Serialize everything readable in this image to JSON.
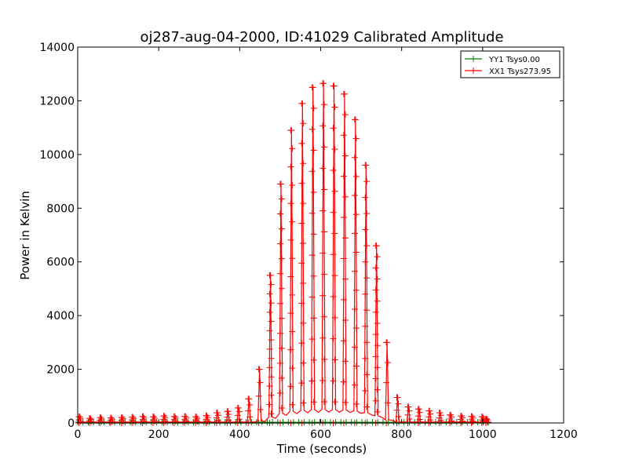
{
  "chart_data": {
    "type": "line",
    "title": "oj287-aug-04-2000, ID:41029 Calibrated Amplitude",
    "xlabel": "Time (seconds)",
    "ylabel": "Power in Kelvin",
    "xlim": [
      0,
      1200
    ],
    "ylim": [
      0,
      14000
    ],
    "xticks": [
      0,
      200,
      400,
      600,
      800,
      1000,
      1200
    ],
    "yticks": [
      0,
      2000,
      4000,
      6000,
      8000,
      10000,
      12000,
      14000
    ],
    "grid": false,
    "legend_position": "top-right",
    "series": [
      {
        "name": "YY1 Tsys0.00",
        "color": "#008000",
        "marker": "plus",
        "scans": [
          {
            "t": 0,
            "peak": 0
          },
          {
            "t": 1015,
            "peak": 0
          }
        ]
      },
      {
        "name": "XX1 Tsys273.95",
        "color": "#ff0000",
        "marker": "plus",
        "scans": [
          {
            "t": 5,
            "peak": 230
          },
          {
            "t": 31,
            "peak": 170
          },
          {
            "t": 57,
            "peak": 200
          },
          {
            "t": 83,
            "peak": 190
          },
          {
            "t": 110,
            "peak": 210
          },
          {
            "t": 136,
            "peak": 220
          },
          {
            "t": 162,
            "peak": 240
          },
          {
            "t": 188,
            "peak": 230
          },
          {
            "t": 214,
            "peak": 260
          },
          {
            "t": 240,
            "peak": 240
          },
          {
            "t": 266,
            "peak": 250
          },
          {
            "t": 293,
            "peak": 230
          },
          {
            "t": 319,
            "peak": 270
          },
          {
            "t": 345,
            "peak": 380
          },
          {
            "t": 371,
            "peak": 430
          },
          {
            "t": 397,
            "peak": 560
          },
          {
            "t": 423,
            "peak": 900
          },
          {
            "t": 449,
            "peak": 2000
          },
          {
            "t": 476,
            "peak": 5500
          },
          {
            "t": 502,
            "peak": 8900
          },
          {
            "t": 528,
            "peak": 10900
          },
          {
            "t": 555,
            "peak": 11900
          },
          {
            "t": 581,
            "peak": 12500
          },
          {
            "t": 607,
            "peak": 12650
          },
          {
            "t": 633,
            "peak": 12550
          },
          {
            "t": 659,
            "peak": 12250
          },
          {
            "t": 686,
            "peak": 11300
          },
          {
            "t": 712,
            "peak": 9600
          },
          {
            "t": 738,
            "peak": 6600
          },
          {
            "t": 764,
            "peak": 3000
          },
          {
            "t": 790,
            "peak": 950
          },
          {
            "t": 817,
            "peak": 600
          },
          {
            "t": 843,
            "peak": 520
          },
          {
            "t": 869,
            "peak": 450
          },
          {
            "t": 895,
            "peak": 380
          },
          {
            "t": 921,
            "peak": 300
          },
          {
            "t": 948,
            "peak": 260
          },
          {
            "t": 974,
            "peak": 250
          },
          {
            "t": 1000,
            "peak": 230
          },
          {
            "t": 1010,
            "peak": 150
          }
        ]
      }
    ]
  }
}
